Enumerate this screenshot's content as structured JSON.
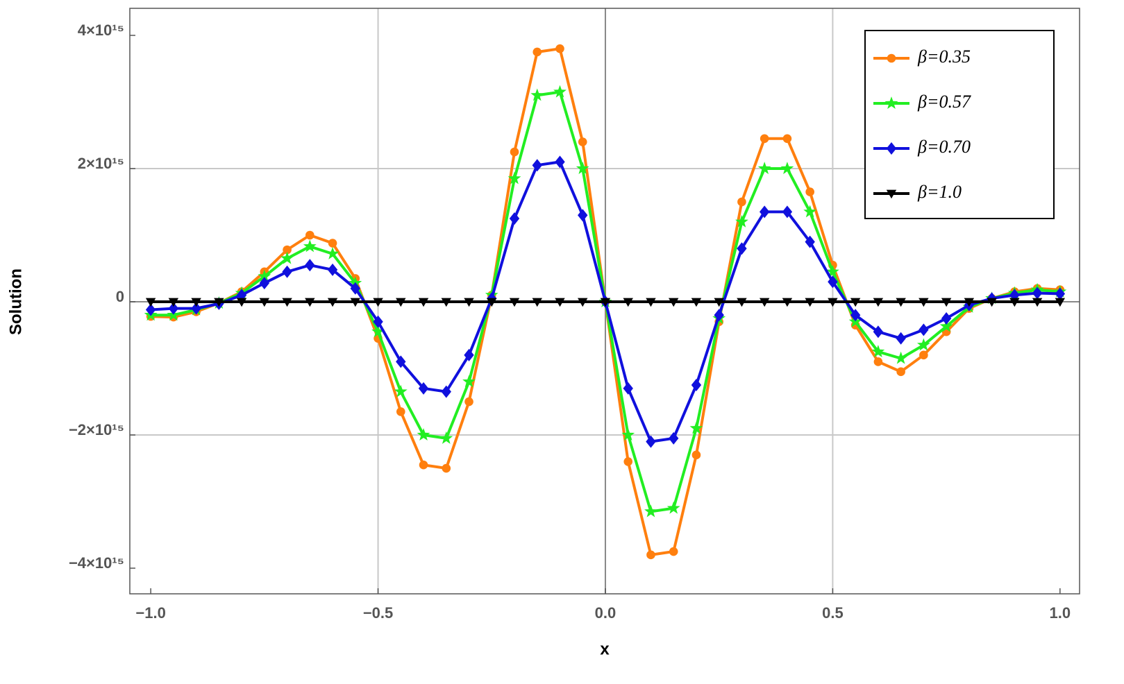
{
  "chart_data": {
    "type": "line",
    "x_label": "x",
    "y_label": "Solution",
    "x": [
      -1.0,
      -0.95,
      -0.9,
      -0.85,
      -0.8,
      -0.75,
      -0.7,
      -0.65,
      -0.6,
      -0.55,
      -0.5,
      -0.45,
      -0.4,
      -0.35,
      -0.3,
      -0.25,
      -0.2,
      -0.15,
      -0.1,
      -0.05,
      0.0,
      0.05,
      0.1,
      0.15,
      0.2,
      0.25,
      0.3,
      0.35,
      0.4,
      0.45,
      0.5,
      0.55,
      0.6,
      0.65,
      0.7,
      0.75,
      0.8,
      0.85,
      0.9,
      0.95,
      1.0
    ],
    "series": [
      {
        "name": "β=0.35",
        "color": "#ff7f0e",
        "marker": "circle",
        "values": [
          -220000000000000.0,
          -230000000000000.0,
          -150000000000000.0,
          -20000000000000.0,
          150000000000000.0,
          450000000000000.0,
          780000000000000.0,
          1000000000000000.0,
          880000000000000.0,
          350000000000000.0,
          -550000000000000.0,
          -1650000000000000.0,
          -2450000000000000.0,
          -2500000000000000.0,
          -1500000000000000.0,
          100000000000000.0,
          2250000000000000.0,
          3750000000000000.0,
          3800000000000000.0,
          2400000000000000.0,
          0,
          -2400000000000000.0,
          -3800000000000000.0,
          -3750000000000000.0,
          -2300000000000000.0,
          -300000000000000.0,
          1500000000000000.0,
          2450000000000000.0,
          2450000000000000.0,
          1650000000000000.0,
          550000000000000.0,
          -350000000000000.0,
          -900000000000000.0,
          -1050000000000000.0,
          -800000000000000.0,
          -450000000000000.0,
          -100000000000000.0,
          50000000000000.0,
          150000000000000.0,
          200000000000000.0,
          180000000000000.0
        ]
      },
      {
        "name": "β=0.57",
        "color": "#22ee22",
        "marker": "star",
        "values": [
          -200000000000000.0,
          -200000000000000.0,
          -120000000000000.0,
          -20000000000000.0,
          130000000000000.0,
          380000000000000.0,
          650000000000000.0,
          830000000000000.0,
          720000000000000.0,
          280000000000000.0,
          -450000000000000.0,
          -1350000000000000.0,
          -2000000000000000.0,
          -2050000000000000.0,
          -1200000000000000.0,
          100000000000000.0,
          1850000000000000.0,
          3100000000000000.0,
          3150000000000000.0,
          2000000000000000.0,
          0,
          -2000000000000000.0,
          -3150000000000000.0,
          -3100000000000000.0,
          -1900000000000000.0,
          -250000000000000.0,
          1200000000000000.0,
          2000000000000000.0,
          2000000000000000.0,
          1350000000000000.0,
          450000000000000.0,
          -300000000000000.0,
          -750000000000000.0,
          -850000000000000.0,
          -650000000000000.0,
          -370000000000000.0,
          -80000000000000.0,
          50000000000000.0,
          130000000000000.0,
          180000000000000.0,
          150000000000000.0
        ]
      },
      {
        "name": "β=0.70",
        "color": "#1010dd",
        "marker": "diamond",
        "values": [
          -120000000000000.0,
          -100000000000000.0,
          -100000000000000.0,
          -30000000000000.0,
          100000000000000.0,
          280000000000000.0,
          450000000000000.0,
          550000000000000.0,
          480000000000000.0,
          200000000000000.0,
          -300000000000000.0,
          -900000000000000.0,
          -1300000000000000.0,
          -1350000000000000.0,
          -800000000000000.0,
          50000000000000.0,
          1250000000000000.0,
          2050000000000000.0,
          2100000000000000.0,
          1300000000000000.0,
          0,
          -1300000000000000.0,
          -2100000000000000.0,
          -2050000000000000.0,
          -1250000000000000.0,
          -200000000000000.0,
          800000000000000.0,
          1350000000000000.0,
          1350000000000000.0,
          900000000000000.0,
          300000000000000.0,
          -200000000000000.0,
          -450000000000000.0,
          -550000000000000.0,
          -420000000000000.0,
          -250000000000000.0,
          -50000000000000.0,
          50000000000000.0,
          100000000000000.0,
          130000000000000.0,
          120000000000000.0
        ]
      },
      {
        "name": "β=1.0",
        "color": "#000000",
        "marker": "triangle-down",
        "values": [
          0,
          0,
          0,
          0,
          0,
          0,
          0,
          0,
          0,
          0,
          0,
          0,
          0,
          0,
          0,
          0,
          0,
          0,
          0,
          0,
          0,
          0,
          0,
          0,
          0,
          0,
          0,
          0,
          0,
          0,
          0,
          0,
          0,
          0,
          0,
          0,
          0,
          0,
          0,
          0,
          0
        ]
      }
    ],
    "xlim": [
      -1.046,
      1.043
    ],
    "ylim": [
      -4385000000000000.0,
      4406000000000000.0
    ],
    "xticks": [
      {
        "value": -1,
        "label": "−1.0"
      },
      {
        "value": -0.5,
        "label": "−0.5"
      },
      {
        "value": 0,
        "label": "0.0"
      },
      0.5,
      {
        "value": 1,
        "label": "1.0"
      }
    ],
    "yticks": [
      {
        "value": -4000000000000000.0,
        "label": "−4×10¹⁵"
      },
      {
        "value": -2000000000000000.0,
        "label": "−2×10¹⁵"
      },
      0,
      {
        "value": 2000000000000000.0,
        "label": "2×10¹⁵"
      },
      {
        "value": 4000000000000000.0,
        "label": "4×10¹⁵"
      }
    ],
    "grid": true,
    "legend": "top-right"
  }
}
